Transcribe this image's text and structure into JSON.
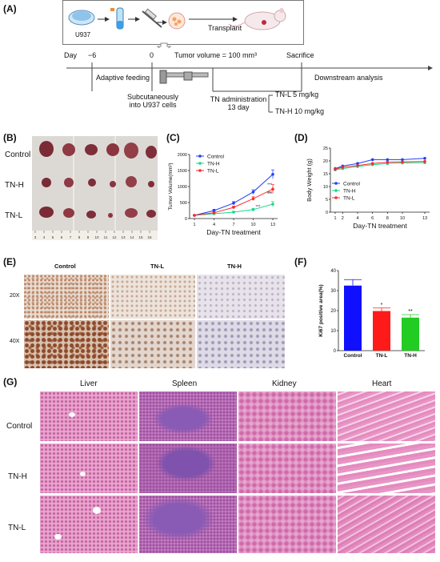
{
  "figure": {
    "panels": {
      "A": "(A)",
      "B": "(B)",
      "C": "(C)",
      "D": "(D)",
      "E": "(E)",
      "F": "(F)",
      "G": "(G)"
    },
    "schematic": {
      "cell_line": "U937",
      "transplant_label": "Transplant",
      "day_label": "Day",
      "day_start": "−6",
      "day_zero": "0",
      "tumor_volume_label": "Tumor volume = 100 mm³",
      "sacrifice_label": "Sacrifice",
      "adaptive_feeding": "Adaptive feeding",
      "downstream_analysis": "Downstream analysis",
      "subcutaneous_line1": "Subcutaneously",
      "subcutaneous_line2": "into U937 cells",
      "tn_admin_line1": "TN administration",
      "tn_admin_line2": "13 day",
      "tnl_dose": "TN-L   5 mg/kg",
      "tnh_dose": "TN-H  10 mg/kg"
    },
    "tumor_photo": {
      "rows": [
        "Control",
        "TN-H",
        "TN-L"
      ],
      "ruler_numbers": [
        "3",
        "4",
        "5",
        "6",
        "7",
        "8",
        "9",
        "10",
        "11",
        "12",
        "13",
        "14",
        "15",
        "16"
      ]
    },
    "ihc": {
      "columns": [
        "Control",
        "TN-L",
        "TN-H"
      ],
      "rows": [
        "20X",
        "40X"
      ]
    },
    "histology": {
      "columns": [
        "Liver",
        "Spleen",
        "Kidney",
        "Heart"
      ],
      "rows": [
        "Control",
        "TN-H",
        "TN-L"
      ]
    },
    "colors": {
      "control": "#1f3fff",
      "tnh": "#19d98c",
      "tnl": "#ff2a2a",
      "bar_control": "#1010ff",
      "bar_tnl": "#ff1a1a",
      "bar_tnh": "#22cc22"
    }
  },
  "chart_data": [
    {
      "id": "C",
      "type": "line",
      "xlabel": "Day-TN treatment",
      "ylabel": "Tumor Volume(mm³)",
      "x": [
        1,
        4,
        7,
        10,
        13
      ],
      "ylim": [
        0,
        2000
      ],
      "yticks": [
        0,
        500,
        1000,
        1500,
        2000
      ],
      "legend_position": "top-left",
      "series": [
        {
          "name": "Control",
          "color_key": "control",
          "values": [
            100,
            250,
            480,
            830,
            1380
          ],
          "errors": [
            20,
            40,
            50,
            70,
            140
          ]
        },
        {
          "name": "TN-H",
          "color_key": "tnh",
          "values": [
            100,
            150,
            200,
            280,
            450
          ],
          "errors": [
            15,
            20,
            30,
            40,
            80
          ]
        },
        {
          "name": "TN-L",
          "color_key": "tnl",
          "values": [
            100,
            180,
            350,
            620,
            920
          ],
          "errors": [
            15,
            30,
            40,
            60,
            140
          ]
        }
      ],
      "annotations": [
        "***",
        "***",
        "***",
        "***"
      ]
    },
    {
      "id": "D",
      "type": "line",
      "xlabel": "Day-TN treatment",
      "ylabel": "Body Weight (g)",
      "x": [
        1,
        2,
        4,
        6,
        8,
        10,
        13
      ],
      "ylim": [
        0,
        25
      ],
      "yticks": [
        0,
        5,
        10,
        15,
        20,
        25
      ],
      "legend_position": "bottom-left",
      "series": [
        {
          "name": "Control",
          "color_key": "control",
          "values": [
            17.0,
            18.0,
            19.0,
            20.5,
            20.5,
            20.5,
            21.0
          ]
        },
        {
          "name": "TN-H",
          "color_key": "tnh",
          "values": [
            16.5,
            17.0,
            17.8,
            18.5,
            19.0,
            19.2,
            19.3
          ]
        },
        {
          "name": "TN-L",
          "color_key": "tnl",
          "values": [
            16.8,
            17.5,
            18.2,
            19.0,
            19.5,
            19.6,
            19.8
          ]
        }
      ]
    },
    {
      "id": "F",
      "type": "bar",
      "ylabel": "Ki67 positive area(%)",
      "categories": [
        "Control",
        "TN-L",
        "TN-H"
      ],
      "values": [
        32.5,
        19.8,
        16.5
      ],
      "errors": [
        3.0,
        1.5,
        1.5
      ],
      "ylim": [
        0,
        40
      ],
      "yticks": [
        0,
        10,
        20,
        30,
        40
      ],
      "significance": [
        "",
        "*",
        "**"
      ]
    }
  ]
}
